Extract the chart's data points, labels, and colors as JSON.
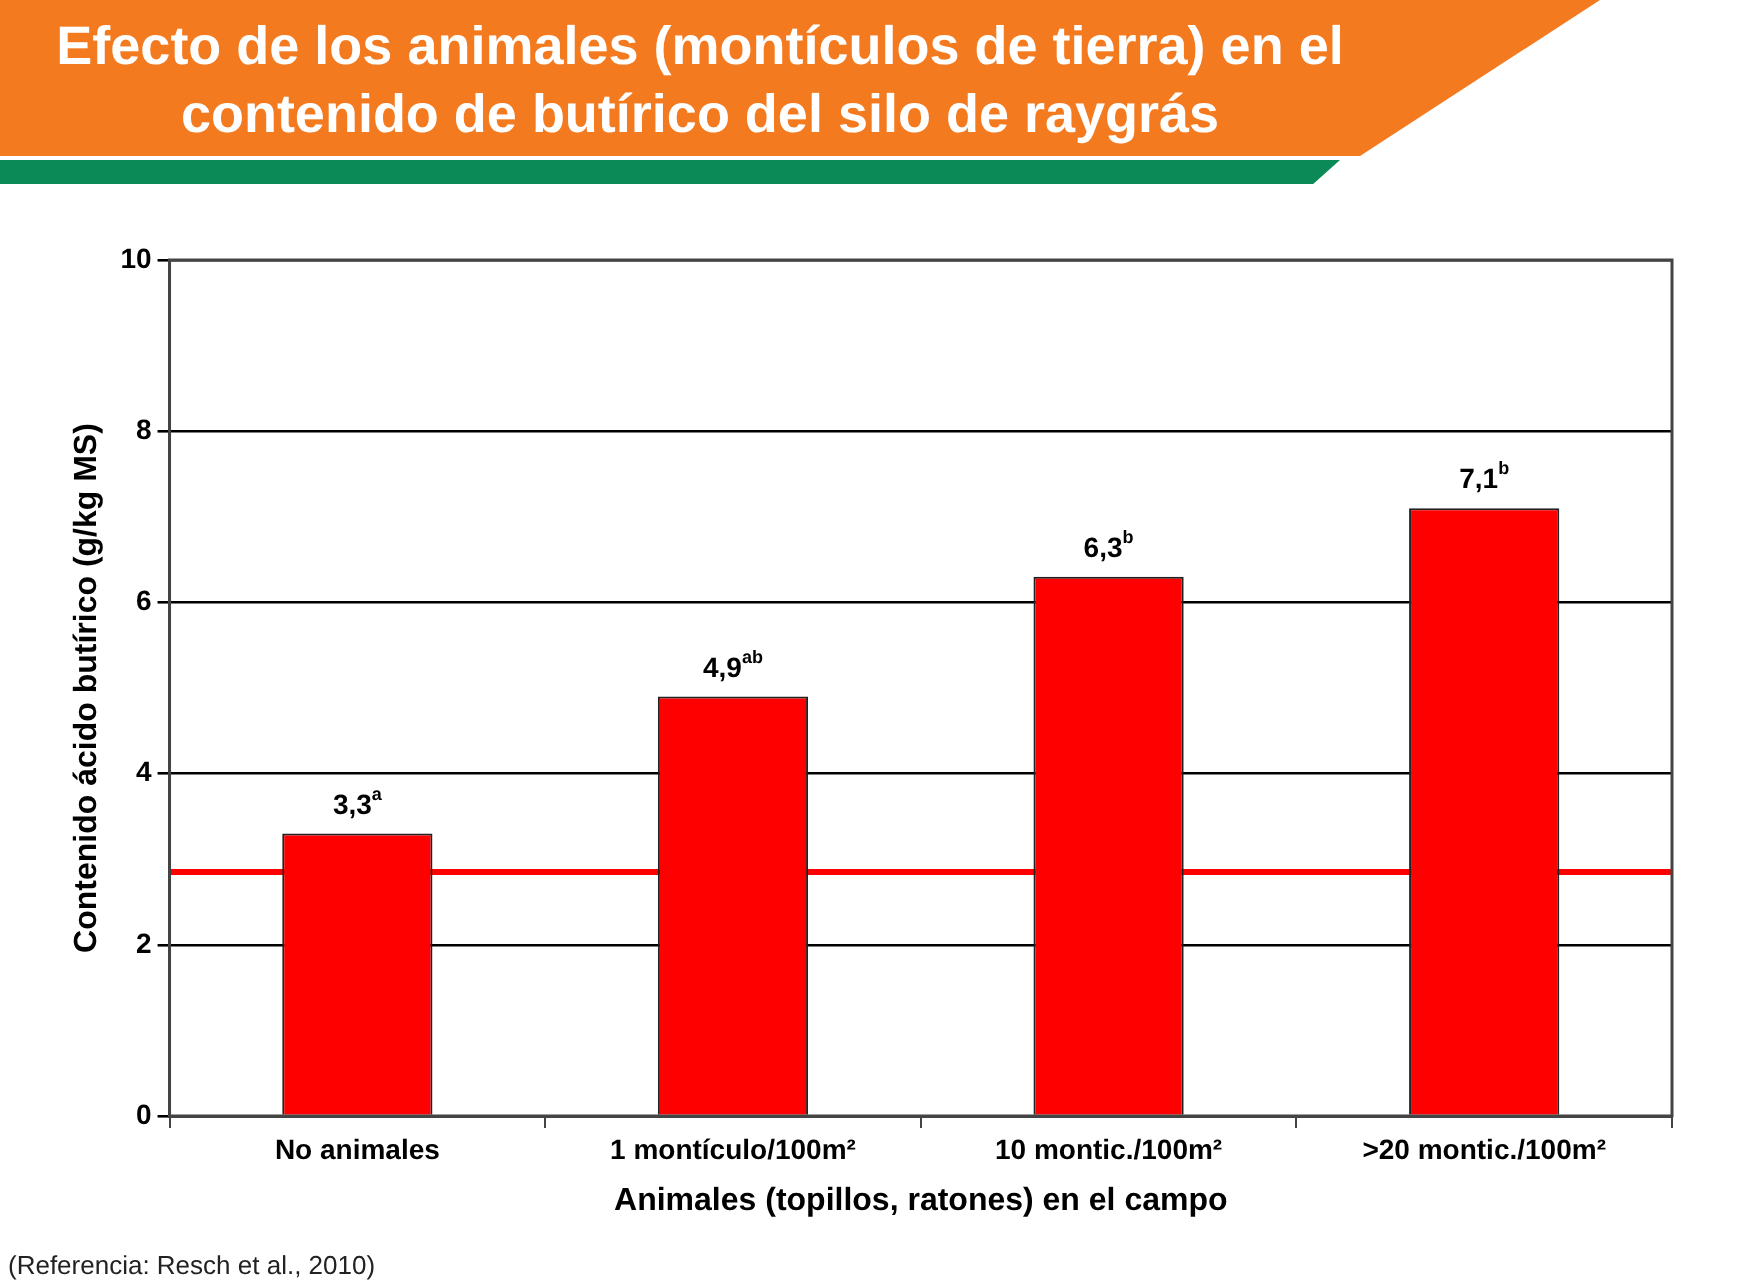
{
  "chart_data": {
    "type": "bar",
    "title": "Efecto de los animales (montículos de tierra) en el contenido de butírico del silo de raygrás",
    "xlabel": "Animales (topillos, ratones) en el campo",
    "ylabel": "Contenido ácido butírico (g/kg MS)",
    "categories": [
      "No animales",
      "1 montículo/100m²",
      "10 montic./100m²",
      ">20 montic./100m²"
    ],
    "values": [
      3.3,
      4.9,
      6.3,
      7.1
    ],
    "value_labels": [
      "3,3$^{a}$",
      "4,9$^{ab}$",
      "6,3$^{b}$",
      "7,1$^{b}$"
    ],
    "color": "#ff0000",
    "ylim": [
      0,
      10
    ],
    "yticks": [
      0,
      2,
      4,
      6,
      8,
      10
    ],
    "grid": "y",
    "legend": false,
    "ref_lines": [
      {
        "axis": "y",
        "value": 2.85,
        "color": "#ff0000"
      }
    ],
    "annotations": [
      "(Referencia: Resch et al., 2010)"
    ]
  }
}
